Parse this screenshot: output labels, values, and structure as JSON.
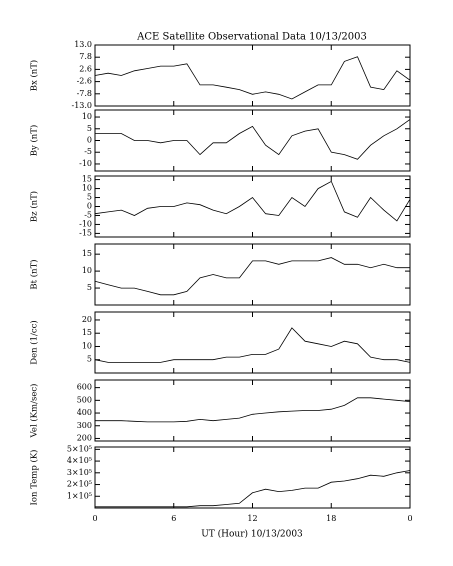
{
  "title": "ACE Satellite Observational Data   10/13/2003",
  "x_axis": {
    "xlabel": "UT (Hour)   10/13/2003",
    "x": [
      0,
      1,
      2,
      3,
      4,
      5,
      6,
      7,
      8,
      9,
      10,
      11,
      12,
      13,
      14,
      15,
      16,
      17,
      18,
      19,
      20,
      21,
      22,
      23,
      24
    ],
    "xlim": [
      0,
      24
    ],
    "xticks": [
      0,
      6,
      12,
      18,
      {
        "value": 24,
        "label": "0"
      }
    ]
  },
  "chart_data": [
    {
      "type": "line",
      "ylabel": "Bx (nT)",
      "color": "#000000",
      "values": [
        0,
        1,
        0,
        2,
        3,
        4,
        4,
        5,
        -4,
        -4,
        -5,
        -6,
        -8,
        -7,
        -8,
        -10,
        -7,
        -4,
        -4,
        6,
        8,
        -5,
        -6,
        2,
        -2
      ],
      "ylim": [
        -13,
        13
      ],
      "yticks": [
        {
          "value": 13,
          "label": "13.0"
        },
        7.8,
        2.6,
        -2.6,
        -7.8,
        {
          "value": -13,
          "label": "-13.0"
        }
      ]
    },
    {
      "type": "line",
      "ylabel": "By (nT)",
      "color": "#000000",
      "values": [
        3,
        3,
        3,
        0,
        0,
        -1,
        0,
        0,
        -6,
        -1,
        -1,
        3,
        6,
        -2,
        -6,
        2,
        4,
        5,
        -5,
        -6,
        -8,
        -2,
        2,
        5,
        9
      ],
      "ylim": [
        -13,
        13
      ],
      "yticks": [
        10,
        5,
        0,
        -5,
        -10
      ]
    },
    {
      "type": "line",
      "ylabel": "Bz (nT)",
      "color": "#000000",
      "values": [
        -4,
        -3,
        -2,
        -5,
        -1,
        0,
        0,
        2,
        1,
        -2,
        -4,
        0,
        5,
        -4,
        -5,
        5,
        0,
        10,
        14,
        -3,
        -6,
        5,
        -2,
        -8,
        4
      ],
      "ylim": [
        -17,
        17
      ],
      "yticks": [
        15,
        10,
        5,
        0,
        -5,
        -10,
        -15
      ]
    },
    {
      "type": "line",
      "ylabel": "Bt (nT)",
      "color": "#000000",
      "values": [
        7,
        6,
        5,
        5,
        4,
        3,
        3,
        4,
        8,
        9,
        8,
        8,
        13,
        13,
        12,
        13,
        13,
        13,
        14,
        12,
        12,
        11,
        12,
        11,
        11
      ],
      "ylim": [
        0,
        18
      ],
      "yticks": [
        15,
        10,
        5
      ]
    },
    {
      "type": "line",
      "ylabel": "Den (1/cc)",
      "color": "#000000",
      "values": [
        5,
        4,
        4,
        4,
        4,
        4,
        5,
        5,
        5,
        5,
        6,
        6,
        7,
        7,
        9,
        17,
        12,
        11,
        10,
        12,
        11,
        6,
        5,
        5,
        4
      ],
      "ylim": [
        0,
        23
      ],
      "yticks": [
        20,
        15,
        10,
        5
      ]
    },
    {
      "type": "line",
      "ylabel": "Vel (Km/sec)",
      "color": "#000000",
      "values": [
        340,
        340,
        340,
        335,
        330,
        330,
        330,
        335,
        350,
        340,
        350,
        360,
        390,
        400,
        410,
        415,
        420,
        420,
        430,
        460,
        520,
        520,
        510,
        500,
        490
      ],
      "ylim": [
        180,
        660
      ],
      "yticks": [
        600,
        500,
        400,
        300,
        200
      ]
    },
    {
      "type": "line",
      "ylabel": "Ion Temp (K)",
      "color": "#000000",
      "values": [
        10000,
        10000,
        10000,
        10000,
        10000,
        10000,
        10000,
        10000,
        20000,
        20000,
        30000,
        40000,
        130000,
        160000,
        140000,
        150000,
        170000,
        170000,
        220000,
        230000,
        250000,
        280000,
        270000,
        300000,
        320000
      ],
      "ylim": [
        0,
        520000
      ],
      "yticks": [
        {
          "value": 500000,
          "label": "5×10⁵"
        },
        {
          "value": 400000,
          "label": "4×10⁵"
        },
        {
          "value": 300000,
          "label": "3×10⁵"
        },
        {
          "value": 200000,
          "label": "2×10⁵"
        },
        {
          "value": 100000,
          "label": "1×10⁵"
        }
      ]
    }
  ]
}
